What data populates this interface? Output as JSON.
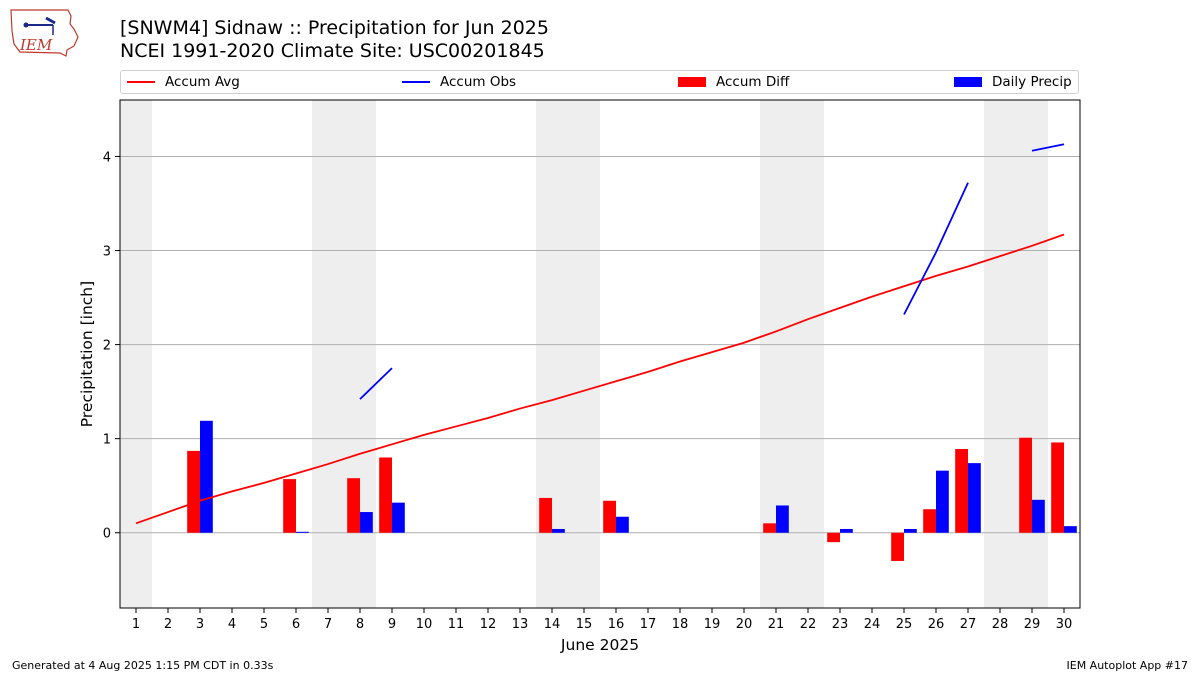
{
  "header": {
    "logo_text": "IEM",
    "title_line1": "[SNWM4] Sidnaw :: Precipitation for Jun 2025",
    "title_line2": "NCEI 1991-2020 Climate Site: USC00201845"
  },
  "legend": {
    "items": [
      {
        "label": "Accum Avg",
        "kind": "line",
        "color": "#ff0000"
      },
      {
        "label": "Accum Obs",
        "kind": "line",
        "color": "#0000ff"
      },
      {
        "label": "Accum Diff",
        "kind": "box",
        "color": "#ff0000"
      },
      {
        "label": "Daily Precip",
        "kind": "box",
        "color": "#0000ff"
      }
    ]
  },
  "footer": {
    "left": "Generated at 4 Aug 2025 1:15 PM CDT in 0.33s",
    "right": "IEM Autoplot App #17"
  },
  "chart_data": {
    "type": "bar",
    "xlabel": "June 2025",
    "ylabel": "Precipitation [inch]",
    "xlim": [
      0.5,
      30.5
    ],
    "ylim": [
      -0.8,
      4.6
    ],
    "yticks": [
      0,
      1,
      2,
      3,
      4
    ],
    "xticks": [
      1,
      2,
      3,
      4,
      5,
      6,
      7,
      8,
      9,
      10,
      11,
      12,
      13,
      14,
      15,
      16,
      17,
      18,
      19,
      20,
      21,
      22,
      23,
      24,
      25,
      26,
      27,
      28,
      29,
      30
    ],
    "weekend_shading": [
      [
        0.5,
        1.5
      ],
      [
        6.5,
        8.5
      ],
      [
        13.5,
        15.5
      ],
      [
        20.5,
        22.5
      ],
      [
        27.5,
        29.5
      ]
    ],
    "grid": "horizontal",
    "colors": {
      "avg": "#ff0000",
      "obs": "#0000ff",
      "diff": "#ff0000",
      "daily": "#0000ff",
      "shade": "#eeeeee",
      "grid": "#b0b0b0"
    },
    "accum_avg": {
      "x": [
        1,
        2,
        3,
        4,
        5,
        6,
        7,
        8,
        9,
        10,
        11,
        12,
        13,
        14,
        15,
        16,
        17,
        18,
        19,
        20,
        21,
        22,
        23,
        24,
        25,
        26,
        27,
        28,
        29,
        30
      ],
      "y": [
        0.1,
        0.22,
        0.34,
        0.44,
        0.53,
        0.63,
        0.73,
        0.84,
        0.94,
        1.04,
        1.13,
        1.22,
        1.32,
        1.41,
        1.51,
        1.61,
        1.71,
        1.82,
        1.92,
        2.02,
        2.14,
        2.27,
        2.39,
        2.51,
        2.62,
        2.73,
        2.83,
        2.94,
        3.05,
        3.17
      ]
    },
    "accum_obs": [
      {
        "x": [
          8,
          9
        ],
        "y": [
          1.42,
          1.75
        ]
      },
      {
        "x": [
          25,
          26,
          27
        ],
        "y": [
          2.32,
          2.98,
          3.72
        ]
      },
      {
        "x": [
          29,
          30
        ],
        "y": [
          4.06,
          4.13
        ]
      }
    ],
    "accum_diff": [
      {
        "day": 3,
        "value": 0.87
      },
      {
        "day": 6,
        "value": 0.57
      },
      {
        "day": 8,
        "value": 0.58
      },
      {
        "day": 9,
        "value": 0.8
      },
      {
        "day": 14,
        "value": 0.37
      },
      {
        "day": 16,
        "value": 0.34
      },
      {
        "day": 21,
        "value": 0.1
      },
      {
        "day": 23,
        "value": -0.1
      },
      {
        "day": 25,
        "value": -0.3
      },
      {
        "day": 26,
        "value": 0.25
      },
      {
        "day": 27,
        "value": 0.89
      },
      {
        "day": 29,
        "value": 1.01
      },
      {
        "day": 30,
        "value": 0.96
      }
    ],
    "daily_precip": [
      {
        "day": 3,
        "value": 1.19
      },
      {
        "day": 6,
        "value": 0.01
      },
      {
        "day": 8,
        "value": 0.22
      },
      {
        "day": 9,
        "value": 0.32
      },
      {
        "day": 14,
        "value": 0.04
      },
      {
        "day": 16,
        "value": 0.17
      },
      {
        "day": 21,
        "value": 0.29
      },
      {
        "day": 23,
        "value": 0.04
      },
      {
        "day": 25,
        "value": 0.04
      },
      {
        "day": 26,
        "value": 0.66
      },
      {
        "day": 27,
        "value": 0.74
      },
      {
        "day": 29,
        "value": 0.35
      },
      {
        "day": 30,
        "value": 0.07
      }
    ]
  }
}
